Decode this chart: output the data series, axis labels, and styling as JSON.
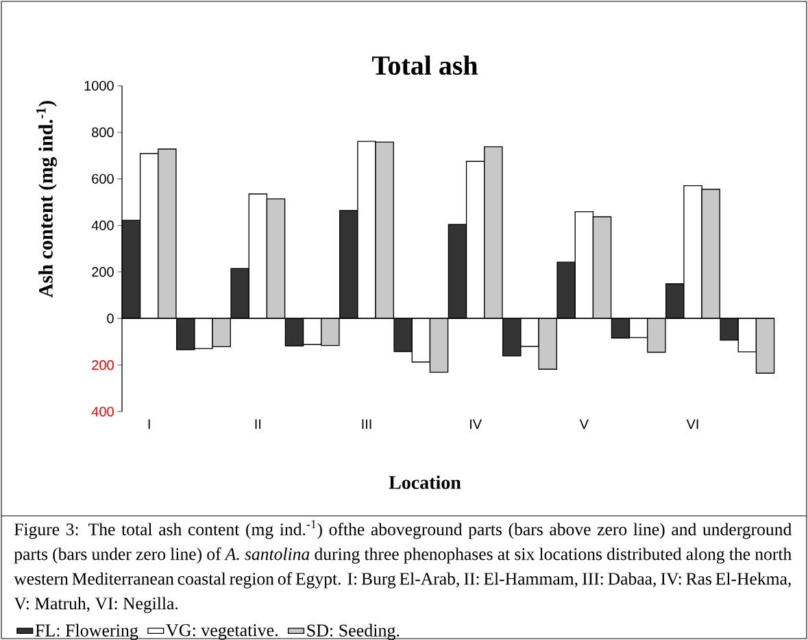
{
  "chart_data": {
    "type": "bar",
    "title": "Total ash",
    "xlabel": "Location",
    "ylabel": "Ash content (mg ind.$^{-1}$)",
    "categories": [
      "I",
      null,
      "II",
      null,
      "III",
      null,
      "IV",
      null,
      "V",
      null,
      "VI",
      null
    ],
    "series": [
      {
        "name": "FL: Flowering",
        "color": "#333333",
        "values": [
          422,
          -134,
          215,
          -118,
          464,
          -142,
          404,
          -161,
          242,
          -84,
          149,
          -93
        ]
      },
      {
        "name": "VG: vegetative.",
        "color": "#ffffff",
        "values": [
          709,
          -129,
          535,
          -112,
          761,
          -187,
          675,
          -120,
          459,
          -82,
          571,
          -143
        ]
      },
      {
        "name": "SD: Seeding.",
        "color": "#c8c8c8",
        "values": [
          728,
          -121,
          514,
          -116,
          758,
          -231,
          738,
          -218,
          437,
          -145,
          555,
          -235
        ]
      }
    ],
    "ylim": [
      -400,
      1000
    ],
    "yticks": [
      {
        "value": -400,
        "label": "400"
      },
      {
        "value": -200,
        "label": "200"
      },
      0,
      200,
      400,
      600,
      800,
      1000
    ],
    "legend": "bottom",
    "annotations": [
      "Figure 3: The total ash content (mg ind.$^{-1}$) ofthe aboveground parts (bars above zero line) and underground parts (bars under zero line) of *A. santolina* during three phenophases at six locations distributed along the north western Mediterranean coastal region of Egypt. I: Burg El-Arab, II: El-Hammam, III: Dabaa, IV: Ras El-Hekma, V: Matruh, VI: Negilla."
    ]
  }
}
